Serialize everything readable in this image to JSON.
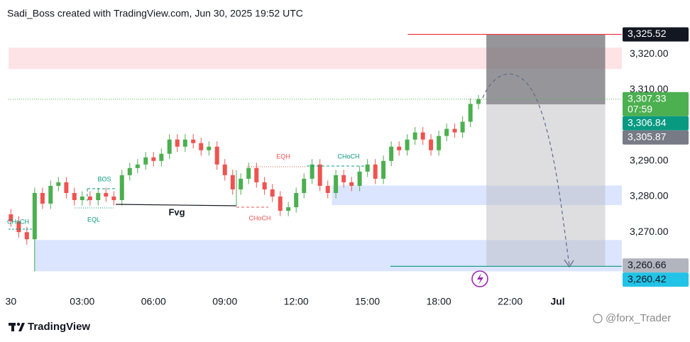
{
  "header": {
    "text": "Sadi_Boss created with TradingView.com, Jun 30, 2025 19:52 UTC"
  },
  "chart_data": {
    "type": "candlestick",
    "x": [
      0,
      0.33,
      0.67,
      1,
      1.33,
      1.67,
      2,
      2.33,
      2.67,
      3,
      3.33,
      3.67,
      4,
      4.33,
      4.67,
      5,
      5.33,
      5.67,
      6,
      6.33,
      6.67,
      7,
      7.33,
      7.67,
      8,
      8.33,
      8.67,
      9,
      9.33,
      9.67,
      10,
      10.33,
      10.67,
      11,
      11.33,
      11.67,
      12,
      12.33,
      12.67,
      13,
      13.33,
      13.67,
      14,
      14.33,
      14.67,
      15,
      15.33,
      15.67,
      16,
      16.33,
      16.67,
      17,
      17.33,
      17.67,
      18,
      18.33,
      18.67,
      19,
      19.33,
      19.67
    ],
    "open": [
      3275,
      3273,
      3270,
      3268,
      3281,
      3278,
      3283,
      3284,
      3281,
      3279,
      3280,
      3279,
      3281,
      3280,
      3279,
      3286,
      3288,
      3289,
      3291,
      3290,
      3292,
      3296,
      3294,
      3296,
      3295,
      3293,
      3294,
      3289,
      3286,
      3282,
      3285,
      3288,
      3284,
      3282,
      3280,
      3276,
      3277,
      3281,
      3285,
      3289,
      3283,
      3281,
      3286,
      3284,
      3283,
      3287,
      3289,
      3285,
      3290,
      3294,
      3293,
      3296,
      3298,
      3296,
      3293,
      3297,
      3299,
      3298,
      3301,
      3306
    ],
    "high": [
      3276.5,
      3274.5,
      3271.5,
      3282.5,
      3282.5,
      3284.5,
      3285.5,
      3285.5,
      3282.5,
      3281.5,
      3281.5,
      3282.5,
      3282.5,
      3281.5,
      3287.5,
      3289.5,
      3290.5,
      3292.5,
      3292.5,
      3293.5,
      3297.5,
      3297.5,
      3297.5,
      3297.5,
      3296.5,
      3295.5,
      3295.5,
      3290.5,
      3287.5,
      3286.5,
      3289.5,
      3289.5,
      3285.5,
      3283.5,
      3281.5,
      3278.5,
      3282.5,
      3286.5,
      3290.5,
      3290.5,
      3284.5,
      3287.5,
      3287.5,
      3285.5,
      3288.5,
      3290.5,
      3290.5,
      3291.5,
      3295.5,
      3295.5,
      3297.5,
      3299.5,
      3299.5,
      3297.5,
      3298.5,
      3300.5,
      3300.5,
      3302.5,
      3307.5,
      3308.5
    ],
    "low": [
      3271.5,
      3268.5,
      3266.5,
      3259,
      3276.5,
      3276.5,
      3281.5,
      3279.5,
      3277.5,
      3277.5,
      3277.5,
      3277.5,
      3278.5,
      3277.5,
      3277.5,
      3284.5,
      3286.5,
      3287.5,
      3288.5,
      3288.5,
      3290.5,
      3292.5,
      3292.5,
      3293.5,
      3291.5,
      3291.5,
      3287.5,
      3284.5,
      3280.5,
      3280.5,
      3283.5,
      3282.5,
      3280.5,
      3278.5,
      3274.5,
      3274.5,
      3275.5,
      3279.5,
      3283.5,
      3281.5,
      3279.5,
      3279.5,
      3282.5,
      3281.5,
      3281.5,
      3285.5,
      3283.5,
      3283.5,
      3288.5,
      3291.5,
      3291.5,
      3294.5,
      3294.5,
      3291.5,
      3291.5,
      3295.5,
      3296.5,
      3296.5,
      3299.5,
      3304.5
    ],
    "close": [
      3273,
      3270,
      3268,
      3281,
      3278,
      3283,
      3284,
      3281,
      3279,
      3280,
      3279,
      3281,
      3280,
      3279,
      3286,
      3288,
      3289,
      3291,
      3290,
      3292,
      3296,
      3294,
      3296,
      3295,
      3293,
      3294,
      3289,
      3286,
      3282,
      3285,
      3288,
      3284,
      3282,
      3280,
      3276,
      3277,
      3281,
      3285,
      3289,
      3283,
      3281,
      3286,
      3284,
      3283,
      3287,
      3289,
      3285,
      3290,
      3294,
      3293,
      3296,
      3298,
      3296,
      3293,
      3297,
      3299,
      3298,
      3301,
      3306,
      3307.33
    ],
    "up_color": "#4caf50",
    "down_color": "#ef5350",
    "grid": false,
    "session_gap": [
      21,
      22
    ],
    "xlim": [
      -0.1,
      26.7
    ],
    "xticks": [
      {
        "value": 0,
        "label": "30"
      },
      {
        "value": 3,
        "label": "03:00"
      },
      {
        "value": 6,
        "label": "06:00"
      },
      {
        "value": 9,
        "label": "09:00"
      },
      {
        "value": 12,
        "label": "12:00"
      },
      {
        "value": 15,
        "label": "15:00"
      },
      {
        "value": 18,
        "label": "18:00"
      },
      {
        "value": 22,
        "label": "22:00"
      },
      {
        "value": 24,
        "label": "Jul"
      }
    ],
    "ylim": [
      3255.5,
      3328.8
    ],
    "yticks": [
      {
        "value": 3270,
        "label": "3,270.00"
      },
      {
        "value": 3280,
        "label": "3,280.00"
      },
      {
        "value": 3290,
        "label": "3,290.00"
      },
      {
        "value": 3310,
        "label": "3,310.00"
      },
      {
        "value": 3320,
        "label": "3,320.00"
      }
    ],
    "zones": [
      {
        "top": 3321.8,
        "bottom": 3315.8,
        "x_start": -0.1,
        "color": "rgba(242,54,69,0.14)"
      },
      {
        "top": 3283.1,
        "bottom": 3277.6,
        "x_start": 13.5,
        "color": "rgba(41,98,255,0.17)"
      },
      {
        "top": 3267.8,
        "bottom": 3259.0,
        "x_start": 0.97,
        "color": "rgba(41,98,255,0.17)"
      }
    ],
    "position": {
      "x_start": 20,
      "x_end": 26,
      "stop": 3325.52,
      "entry": 3305.87,
      "target": 3260.42,
      "stop_color": "rgba(110,110,115,0.72)",
      "target_color": "rgba(190,190,195,0.5)"
    },
    "lines": [
      {
        "value": 3325.52,
        "x_start": 16.7,
        "color": "#f23645",
        "dash": false
      },
      {
        "value": 3260.42,
        "x_start": 15.96,
        "color": "#089981",
        "dash": false
      },
      {
        "value": 3307.33,
        "x_start": -0.1,
        "color": "#4caf50",
        "dash": true
      }
    ],
    "price_labels": [
      {
        "value": 3325.52,
        "label": "3,325.52",
        "color": "#131722",
        "text_color": "#ffffff"
      },
      {
        "value": 3307.33,
        "label": "3,307.33",
        "countdown": "07:59",
        "color": "#4caf50",
        "text_color": "#ffffff"
      },
      {
        "value": 3306.84,
        "label": "3,306.84",
        "color": "#089981",
        "text_color": "#ffffff"
      },
      {
        "value": 3305.87,
        "label": "3,305.87",
        "color": "#787b86",
        "text_color": "#ffffff"
      },
      {
        "value": 3260.66,
        "label": "3,260.66",
        "color": "#b2b5be",
        "text_color": "#131722"
      },
      {
        "value": 3260.42,
        "label": "3,260.42",
        "color": "#22c3e6",
        "text_color": "#131722"
      }
    ],
    "annotations": {
      "choch_left": "CHoCH",
      "bos": "BOS",
      "eql": "EQL",
      "fvg": "Fvg",
      "eqh": "EQH",
      "choch_mid": "CHoCH",
      "choch_right": "CHoCH"
    }
  },
  "footer": {
    "brand": "TradingView",
    "watermark": "@forx_Trader"
  }
}
